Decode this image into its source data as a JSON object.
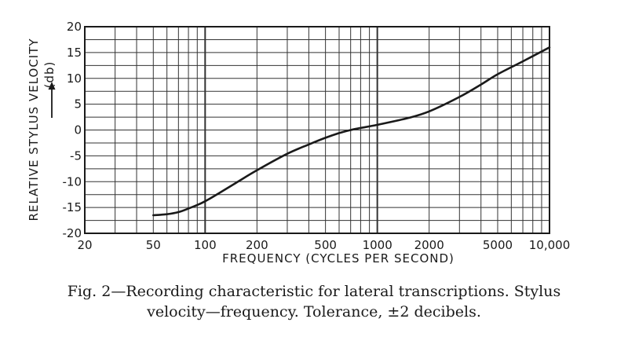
{
  "chart_data": {
    "type": "line",
    "x_scale": "log",
    "xlim": [
      20,
      10000
    ],
    "ylim": [
      -20,
      20
    ],
    "xlabel": "FREQUENCY (CYCLES PER SECOND)",
    "ylabel": "RELATIVE STYLUS VELOCITY",
    "ylabel_unit": "(db)",
    "grid": true,
    "x_ticks": [
      20,
      50,
      100,
      200,
      500,
      1000,
      2000,
      5000,
      10000
    ],
    "x_tick_labels": [
      "20",
      "50",
      "100",
      "200",
      "500",
      "1000",
      "2000",
      "5000",
      "10,000"
    ],
    "y_ticks": [
      -20,
      -15,
      -10,
      -5,
      0,
      5,
      10,
      15,
      20
    ],
    "y_tick_labels": [
      "-20",
      "-15",
      "-10",
      "-5",
      "0",
      "5",
      "10",
      "15",
      "20"
    ],
    "series": [
      {
        "x": [
          50,
          60,
          70,
          80,
          100,
          150,
          200,
          300,
          400,
          500,
          600,
          700,
          800,
          1000,
          1500,
          2000,
          3000,
          4000,
          5000,
          7000,
          10000
        ],
        "y": [
          -16.5,
          -16.3,
          -15.9,
          -15.2,
          -13.8,
          -10.3,
          -7.8,
          -4.6,
          -2.8,
          -1.5,
          -0.6,
          0,
          0.4,
          1.0,
          2.3,
          3.6,
          6.4,
          8.8,
          10.8,
          13.3,
          16.0
        ],
        "color": "#1a1a1a"
      }
    ]
  },
  "caption": {
    "line1": "Fig. 2—Recording characteristic for lateral transcriptions. Stylus",
    "line2": "velocity—frequency. Tolerance, ±2 decibels."
  }
}
